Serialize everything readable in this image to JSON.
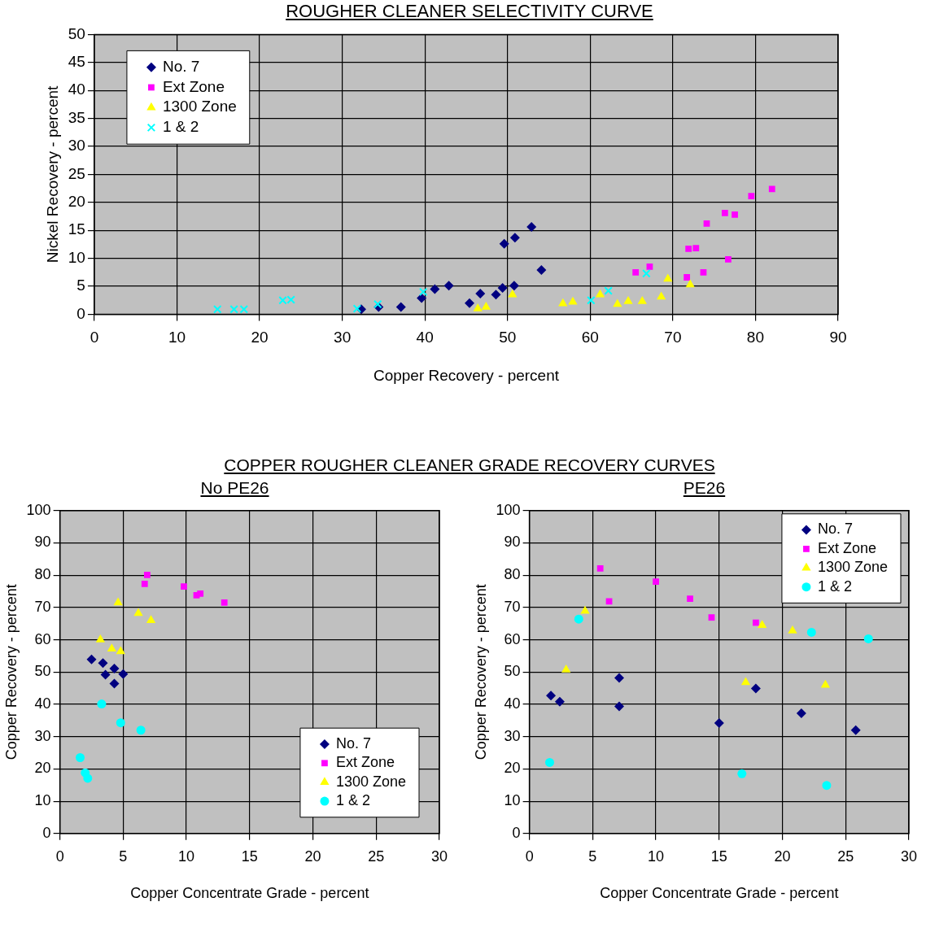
{
  "chart_data": [
    {
      "type": "scatter",
      "title": "ROUGHER CLEANER SELECTIVITY CURVE",
      "xlabel": "Copper Recovery - percent",
      "ylabel": "Nickel Recovery - percent",
      "xlim": [
        0,
        90
      ],
      "xticks": [
        0,
        10,
        20,
        30,
        40,
        50,
        60,
        70,
        80,
        90
      ],
      "ylim": [
        0,
        50
      ],
      "yticks": [
        0,
        5,
        10,
        15,
        20,
        25,
        30,
        35,
        40,
        45,
        50
      ],
      "grid": true,
      "legend": "top left",
      "series": [
        {
          "name": "No. 7",
          "color": "#000080",
          "marker": "diamond",
          "x": [
            32.3,
            34.4,
            37.1,
            39.6,
            41.2,
            42.9,
            45.4,
            46.7,
            48.6,
            49.4,
            49.6,
            50.9,
            50.8,
            52.9,
            54.1
          ],
          "values": [
            0.9,
            1.3,
            1.3,
            2.9,
            4.5,
            5.1,
            2.0,
            3.7,
            3.5,
            4.7,
            12.6,
            13.7,
            5.1,
            15.6,
            7.9
          ]
        },
        {
          "name": "Ext Zone",
          "color": "#ff00ff",
          "marker": "square",
          "x": [
            65.5,
            67.2,
            71.7,
            71.9,
            72.8,
            73.7,
            74.1,
            76.3,
            76.7,
            77.5,
            79.5,
            82.0
          ],
          "values": [
            7.5,
            8.5,
            6.6,
            11.7,
            11.8,
            7.5,
            16.2,
            18.1,
            9.8,
            17.8,
            21.1,
            22.4
          ]
        },
        {
          "name": "1300 Zone",
          "color": "#ffff00",
          "marker": "triangle",
          "x": [
            46.4,
            47.4,
            50.6,
            56.7,
            57.9,
            61.2,
            63.3,
            64.6,
            66.3,
            68.6,
            69.4,
            72.1
          ],
          "values": [
            1.0,
            1.3,
            3.5,
            1.9,
            2.2,
            3.5,
            1.8,
            2.3,
            2.3,
            3.1,
            6.3,
            5.3
          ]
        },
        {
          "name": "1 & 2",
          "color": "#00ffff",
          "marker": "cross",
          "x": [
            14.9,
            16.9,
            18.1,
            22.8,
            23.8,
            31.8,
            34.3,
            39.8,
            60.1,
            62.2,
            66.8
          ],
          "values": [
            0.9,
            0.9,
            0.9,
            2.5,
            2.6,
            1.0,
            1.8,
            4.0,
            2.5,
            4.2,
            7.3
          ]
        }
      ]
    },
    {
      "type": "scatter",
      "title": "No PE26",
      "annotations": [
        "COPPER ROUGHER CLEANER GRADE RECOVERY CURVES"
      ],
      "xlabel": "Copper Concentrate Grade - percent",
      "ylabel": "Copper Recovery - percent",
      "xlim": [
        0,
        30
      ],
      "xticks": [
        0,
        5,
        10,
        15,
        20,
        25,
        30
      ],
      "ylim": [
        0,
        100
      ],
      "yticks": [
        0,
        10,
        20,
        30,
        40,
        50,
        60,
        70,
        80,
        90,
        100
      ],
      "grid": true,
      "legend": "bottom right",
      "series": [
        {
          "name": "No. 7",
          "color": "#000080",
          "marker": "diamond",
          "x": [
            2.5,
            3.4,
            4.3,
            3.6,
            5.0,
            4.3
          ],
          "values": [
            53.9,
            52.8,
            51.1,
            49.2,
            49.4,
            46.4
          ]
        },
        {
          "name": "Ext Zone",
          "color": "#ff00ff",
          "marker": "square",
          "x": [
            6.9,
            6.7,
            9.8,
            10.8,
            11.1,
            13.0
          ],
          "values": [
            80.1,
            77.3,
            76.5,
            73.8,
            74.3,
            71.5
          ]
        },
        {
          "name": "1300 Zone",
          "color": "#ffff00",
          "marker": "triangle",
          "x": [
            4.6,
            6.2,
            7.2,
            3.2,
            4.1,
            4.8
          ],
          "values": [
            71.5,
            68.2,
            66.0,
            60.0,
            57.2,
            56.4
          ]
        },
        {
          "name": "1 & 2",
          "color": "#00ffff",
          "marker": "circle",
          "x": [
            3.3,
            4.8,
            6.4,
            1.6,
            2.0,
            2.2
          ],
          "values": [
            40.1,
            34.3,
            32.0,
            23.5,
            18.8,
            17.1
          ]
        }
      ]
    },
    {
      "type": "scatter",
      "title": "PE26",
      "xlabel": "Copper Concentrate Grade - percent",
      "ylabel": "Copper Recovery - percent",
      "xlim": [
        0,
        30
      ],
      "xticks": [
        0,
        5,
        10,
        15,
        20,
        25,
        30
      ],
      "ylim": [
        0,
        100
      ],
      "yticks": [
        0,
        10,
        20,
        30,
        40,
        50,
        60,
        70,
        80,
        90,
        100
      ],
      "grid": true,
      "legend": "top right",
      "series": [
        {
          "name": "No. 7",
          "color": "#000080",
          "marker": "diamond",
          "x": [
            1.7,
            2.4,
            7.1,
            7.1,
            15.0,
            17.9,
            21.5,
            25.8
          ],
          "values": [
            42.7,
            40.8,
            48.2,
            39.4,
            34.2,
            44.9,
            37.2,
            32.0
          ]
        },
        {
          "name": "Ext Zone",
          "color": "#ff00ff",
          "marker": "square",
          "x": [
            5.6,
            6.3,
            10.0,
            12.7,
            14.4,
            17.9
          ],
          "values": [
            82.1,
            71.9,
            78.0,
            72.7,
            66.9,
            65.3
          ]
        },
        {
          "name": "1300 Zone",
          "color": "#ffff00",
          "marker": "triangle",
          "x": [
            4.4,
            2.9,
            17.1,
            18.4,
            20.8,
            23.4
          ],
          "values": [
            68.9,
            50.7,
            46.8,
            64.5,
            62.8,
            46.0
          ]
        },
        {
          "name": "1 & 2",
          "color": "#00ffff",
          "marker": "circle",
          "x": [
            3.9,
            1.6,
            16.8,
            22.3,
            23.5,
            26.8
          ],
          "values": [
            66.4,
            22.0,
            18.5,
            62.3,
            14.9,
            60.3
          ]
        }
      ]
    }
  ]
}
